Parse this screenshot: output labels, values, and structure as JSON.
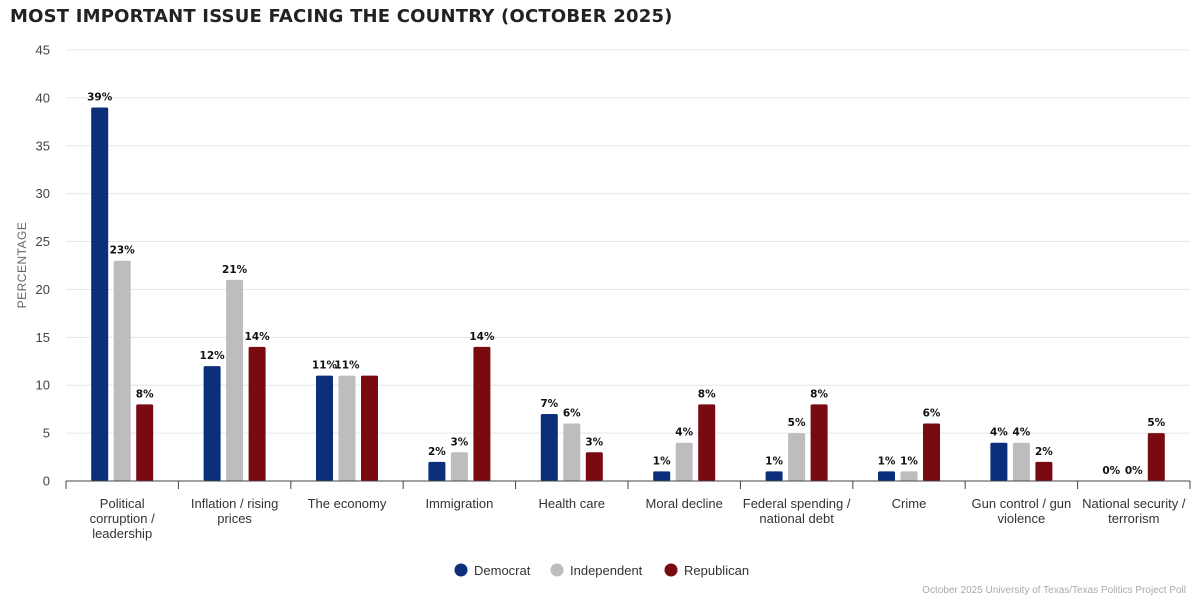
{
  "title": "MOST IMPORTANT ISSUE FACING THE COUNTRY (OCTOBER 2025)",
  "source": "October 2025 University of Texas/Texas Politics Project Poll",
  "chart_data": {
    "type": "bar",
    "title": "MOST IMPORTANT ISSUE FACING THE COUNTRY (OCTOBER 2025)",
    "xlabel": "",
    "ylabel": "PERCENTAGE",
    "ylim": [
      0,
      45
    ],
    "yticks": [
      0,
      5,
      10,
      15,
      20,
      25,
      30,
      35,
      40,
      45
    ],
    "grid": true,
    "legend_position": "bottom-center",
    "categories": [
      [
        "Political",
        "corruption /",
        "leadership"
      ],
      [
        "Inflation / rising",
        "prices"
      ],
      [
        "The economy"
      ],
      [
        "Immigration"
      ],
      [
        "Health care"
      ],
      [
        "Moral decline"
      ],
      [
        "Federal spending /",
        "national debt"
      ],
      [
        "Crime"
      ],
      [
        "Gun control / gun",
        "violence"
      ],
      [
        "National security /",
        "terrorism"
      ]
    ],
    "series": [
      {
        "name": "Democrat",
        "color": "#0b2f7a",
        "values": [
          39,
          12,
          11,
          2,
          7,
          1,
          1,
          1,
          4,
          0
        ],
        "labels": [
          "39%",
          "12%",
          "11%",
          "2%",
          "7%",
          "1%",
          "1%",
          "1%",
          "4%",
          "0%"
        ]
      },
      {
        "name": "Independent",
        "color": "#bdbdbd",
        "values": [
          23,
          21,
          11,
          3,
          6,
          4,
          5,
          1,
          4,
          0
        ],
        "labels": [
          "23%",
          "21%",
          "11%",
          "3%",
          "6%",
          "4%",
          "5%",
          "1%",
          "4%",
          "0%"
        ]
      },
      {
        "name": "Republican",
        "color": "#7a0a12",
        "values": [
          8,
          14,
          11,
          14,
          3,
          8,
          8,
          6,
          2,
          5
        ],
        "labels": [
          "8%",
          "14%",
          "",
          "14%",
          "3%",
          "8%",
          "8%",
          "6%",
          "2%",
          "5%"
        ]
      }
    ]
  }
}
